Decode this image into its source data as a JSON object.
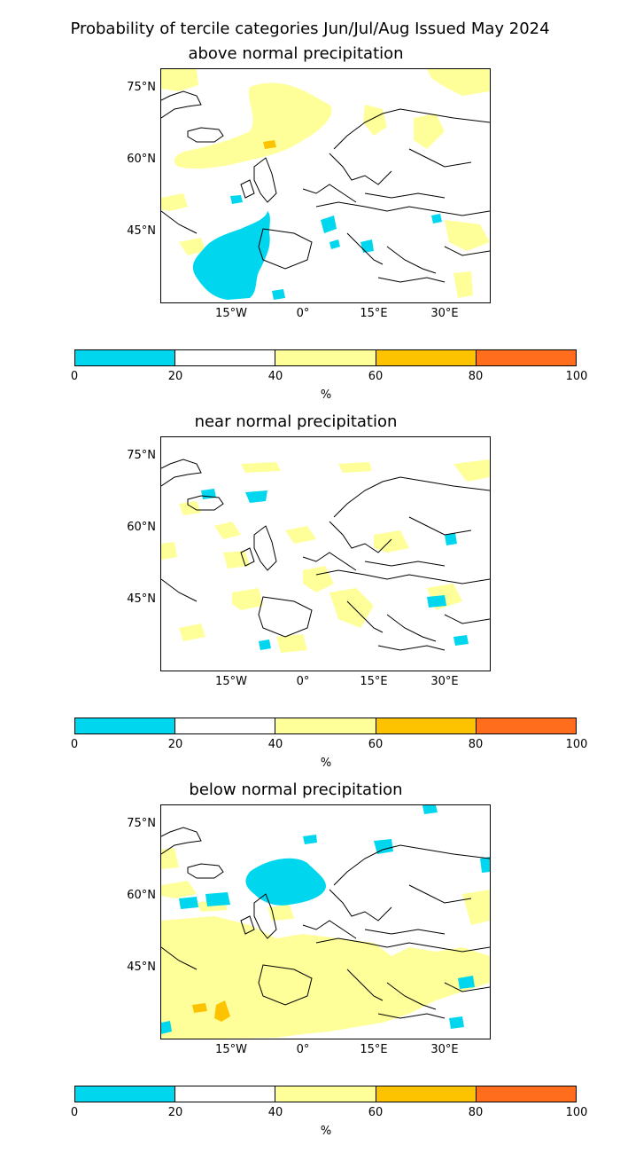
{
  "title": "Probability of tercile categories Jun/Jul/Aug Issued May 2024",
  "colors": {
    "cyan": "#00d7ee",
    "white": "#ffffff",
    "yellow": "#ffff99",
    "gold": "#fdc300",
    "orange": "#ff6d1d",
    "coast": "#000000"
  },
  "map": {
    "lat_ticks": [
      "75°N",
      "60°N",
      "45°N"
    ],
    "lon_ticks": [
      "15°W",
      "0°",
      "15°E",
      "30°E"
    ]
  },
  "colorbar": {
    "ticks": [
      "0",
      "20",
      "40",
      "60",
      "80",
      "100"
    ],
    "label": "%",
    "bins": [
      {
        "range": [
          0,
          20
        ],
        "color": "#00d7ee"
      },
      {
        "range": [
          20,
          40
        ],
        "color": "#ffffff"
      },
      {
        "range": [
          40,
          60
        ],
        "color": "#ffff99"
      },
      {
        "range": [
          60,
          80
        ],
        "color": "#fdc300"
      },
      {
        "range": [
          80,
          100
        ],
        "color": "#ff6d1d"
      }
    ]
  },
  "panels": [
    {
      "title": "above normal precipitation"
    },
    {
      "title": "near normal precipitation"
    },
    {
      "title": "below normal precipitation"
    }
  ]
}
